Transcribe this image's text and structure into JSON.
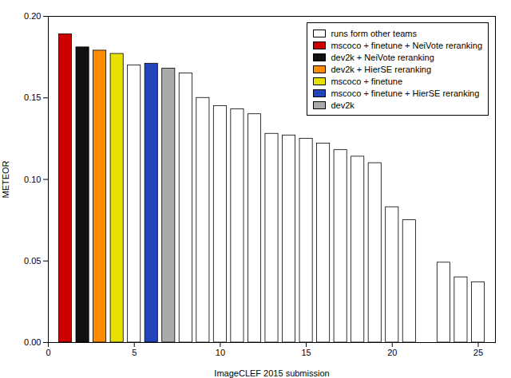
{
  "chart_data": {
    "type": "bar",
    "xlabel": "ImageCLEF 2015 submission",
    "ylabel": "METEOR",
    "x": [
      1,
      2,
      3,
      4,
      5,
      6,
      7,
      8,
      9,
      10,
      11,
      12,
      13,
      14,
      15,
      16,
      17,
      18,
      19,
      20,
      21,
      23,
      24,
      25
    ],
    "series": [
      {
        "name": "runs form other teams",
        "color": "#ffffff",
        "values": [
          null,
          null,
          null,
          null,
          0.17,
          null,
          null,
          0.165,
          0.15,
          0.145,
          0.143,
          0.14,
          0.128,
          0.127,
          0.125,
          0.122,
          0.118,
          0.114,
          0.11,
          0.083,
          0.075,
          0.049,
          0.04,
          0.037
        ]
      },
      {
        "name": "mscoco + finetune + NeiVote reranking",
        "color": "#cc0000",
        "values": [
          0.189,
          null,
          null,
          null,
          null,
          null,
          null,
          null,
          null,
          null,
          null,
          null,
          null,
          null,
          null,
          null,
          null,
          null,
          null,
          null,
          null,
          null,
          null,
          null
        ]
      },
      {
        "name": "dev2k + NeiVote reranking",
        "color": "#111111",
        "values": [
          null,
          0.181,
          null,
          null,
          null,
          null,
          null,
          null,
          null,
          null,
          null,
          null,
          null,
          null,
          null,
          null,
          null,
          null,
          null,
          null,
          null,
          null,
          null,
          null
        ]
      },
      {
        "name": "dev2k + HierSE reranking",
        "color": "#ff8c00",
        "values": [
          null,
          null,
          0.179,
          null,
          null,
          null,
          null,
          null,
          null,
          null,
          null,
          null,
          null,
          null,
          null,
          null,
          null,
          null,
          null,
          null,
          null,
          null,
          null,
          null
        ]
      },
      {
        "name": "mscoco + finetune",
        "color": "#e8e000",
        "values": [
          null,
          null,
          null,
          0.177,
          null,
          null,
          null,
          null,
          null,
          null,
          null,
          null,
          null,
          null,
          null,
          null,
          null,
          null,
          null,
          null,
          null,
          null,
          null,
          null
        ]
      },
      {
        "name": "mscoco + finetune + HierSE reranking",
        "color": "#2244bb",
        "values": [
          null,
          null,
          null,
          null,
          null,
          0.171,
          null,
          null,
          null,
          null,
          null,
          null,
          null,
          null,
          null,
          null,
          null,
          null,
          null,
          null,
          null,
          null,
          null,
          null
        ]
      },
      {
        "name": "dev2k",
        "color": "#aaaaaa",
        "values": [
          null,
          null,
          null,
          null,
          null,
          null,
          0.168,
          null,
          null,
          null,
          null,
          null,
          null,
          null,
          null,
          null,
          null,
          null,
          null,
          null,
          null,
          null,
          null,
          null
        ]
      }
    ],
    "xlim": [
      0,
      26
    ],
    "xticks": [
      0,
      5,
      10,
      15,
      20,
      25
    ],
    "ylim": [
      0.0,
      0.2
    ],
    "yticks": [
      {
        "value": 0.0,
        "label": "0.00"
      },
      0.05,
      {
        "value": 0.1,
        "label": "0.10"
      },
      0.15,
      {
        "value": 0.2,
        "label": "0.20"
      }
    ],
    "legend": "upper right",
    "grid": false
  }
}
